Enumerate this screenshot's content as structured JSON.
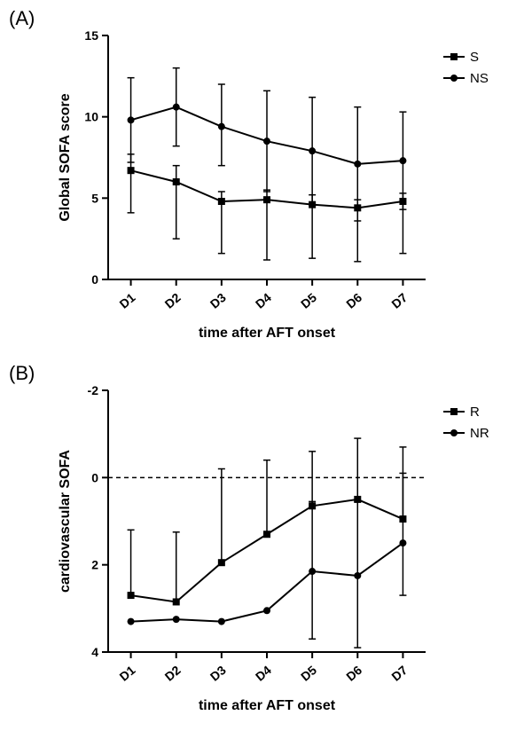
{
  "panelA": {
    "label": "(A)",
    "type": "line-errorbar",
    "xlabel": "time after AFT onset",
    "ylabel": "Global SOFA score",
    "label_fontsize": 16,
    "label_fontweight": "bold",
    "tick_fontsize": 14,
    "tick_fontweight": "bold",
    "categories": [
      "D1",
      "D2",
      "D3",
      "D4",
      "D5",
      "D6",
      "D7"
    ],
    "ylim": [
      0,
      15
    ],
    "yticks": [
      0,
      5,
      10,
      15
    ],
    "grid": false,
    "background_color": "#ffffff",
    "axis_color": "#000000",
    "line_width": 2,
    "marker_size": 8,
    "errorbar_width": 1.5,
    "errorbar_cap": 8,
    "series": [
      {
        "name": "S",
        "marker": "square",
        "color": "#000000",
        "values": [
          6.7,
          6.0,
          4.8,
          4.9,
          4.6,
          4.4,
          4.8
        ],
        "err_low": [
          2.6,
          3.5,
          3.2,
          3.7,
          3.3,
          3.3,
          3.2
        ],
        "err_high": [
          1.0,
          1.0,
          0.6,
          0.6,
          0.6,
          0.5,
          0.5
        ]
      },
      {
        "name": "NS",
        "marker": "circle",
        "color": "#000000",
        "values": [
          9.8,
          10.6,
          9.4,
          8.5,
          7.9,
          7.1,
          7.3
        ],
        "err_low": [
          2.6,
          2.4,
          2.4,
          3.1,
          3.3,
          3.5,
          3.0
        ],
        "err_high": [
          2.6,
          2.4,
          2.6,
          3.1,
          3.3,
          3.5,
          3.0
        ]
      }
    ],
    "legend_position": "right"
  },
  "panelB": {
    "label": "(B)",
    "type": "line-errorbar",
    "xlabel": "time after AFT onset",
    "ylabel": "cardiovascular SOFA",
    "label_fontsize": 16,
    "label_fontweight": "bold",
    "tick_fontsize": 14,
    "tick_fontweight": "bold",
    "categories": [
      "D1",
      "D2",
      "D3",
      "D4",
      "D5",
      "D6",
      "D7"
    ],
    "ylim": [
      4,
      -2
    ],
    "yticks": [
      -2,
      0,
      2,
      4
    ],
    "y_reversed": true,
    "grid": false,
    "reference_line": {
      "y": 0,
      "style": "dashed",
      "color": "#000000"
    },
    "background_color": "#ffffff",
    "axis_color": "#000000",
    "line_width": 2,
    "marker_size": 8,
    "errorbar_width": 1.5,
    "errorbar_cap": 8,
    "series": [
      {
        "name": "R",
        "marker": "square",
        "color": "#000000",
        "values": [
          2.7,
          2.85,
          1.95,
          1.3,
          0.65,
          0.5,
          0.95
        ],
        "err_low": [
          1.5,
          1.6,
          2.15,
          1.7,
          1.25,
          1.4,
          1.65
        ],
        "err_high": [
          0.0,
          0.0,
          0.0,
          0.0,
          0.0,
          0.0,
          0.0
        ]
      },
      {
        "name": "NR",
        "marker": "circle",
        "color": "#000000",
        "values": [
          3.3,
          3.25,
          3.3,
          3.05,
          2.15,
          2.25,
          1.5
        ],
        "err_low": [
          0.0,
          0.0,
          0.0,
          0.0,
          1.6,
          1.7,
          1.6
        ],
        "err_high": [
          0.0,
          0.0,
          0.0,
          0.0,
          1.55,
          1.65,
          1.2
        ]
      }
    ],
    "legend_position": "right"
  }
}
